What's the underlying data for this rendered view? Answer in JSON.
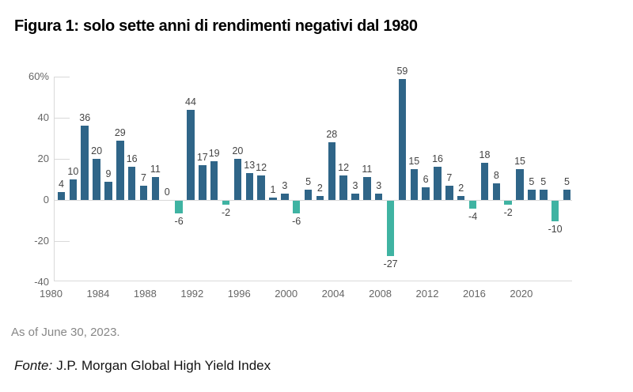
{
  "header": {
    "title": "Figura 1: solo sette anni di rendimenti negativi dal 1980"
  },
  "footer": {
    "as_of": "As of June 30, 2023.",
    "source_label": "Fonte:",
    "source_text": "J.P. Morgan Global High Yield Index"
  },
  "colors": {
    "positive_bar": "#2f6588",
    "negative_bar": "#3fb3a2",
    "axis_line": "#d9d9d9",
    "data_label": "#434343",
    "axis_label": "#666666"
  },
  "chart_data": {
    "type": "bar",
    "title": "Figura 1: solo sette anni di rendimenti negativi dal 1980",
    "xlabel": "",
    "ylabel": "",
    "ylim": [
      -40,
      60
    ],
    "grid": "y-ticks-only",
    "legend": "none",
    "categories": [
      1980,
      1981,
      1982,
      1983,
      1984,
      1985,
      1986,
      1987,
      1988,
      1989,
      1990,
      1991,
      1992,
      1993,
      1994,
      1995,
      1996,
      1997,
      1998,
      1999,
      2000,
      2001,
      2002,
      2003,
      2004,
      2005,
      2006,
      2007,
      2008,
      2009,
      2010,
      2011,
      2012,
      2013,
      2014,
      2015,
      2016,
      2017,
      2018,
      2019,
      2020,
      2021,
      2022,
      2023
    ],
    "values": [
      4,
      10,
      36,
      20,
      9,
      29,
      16,
      7,
      11,
      0,
      -6,
      44,
      17,
      19,
      -2,
      20,
      13,
      12,
      1,
      3,
      -6,
      5,
      2,
      28,
      12,
      3,
      11,
      3,
      -27,
      59,
      15,
      6,
      16,
      7,
      2,
      -4,
      18,
      8,
      -2,
      15,
      5,
      5,
      -10,
      5
    ],
    "y_ticks": [
      {
        "value": 60,
        "label": "60%"
      },
      {
        "value": 40,
        "label": "40"
      },
      {
        "value": 20,
        "label": "20"
      },
      {
        "value": 0,
        "label": "0"
      },
      {
        "value": -20,
        "label": "-20"
      },
      {
        "value": -40,
        "label": "-40"
      }
    ],
    "x_tick_years": [
      1980,
      1984,
      1988,
      1992,
      1996,
      2000,
      2004,
      2008,
      2012,
      2016,
      2020
    ]
  }
}
